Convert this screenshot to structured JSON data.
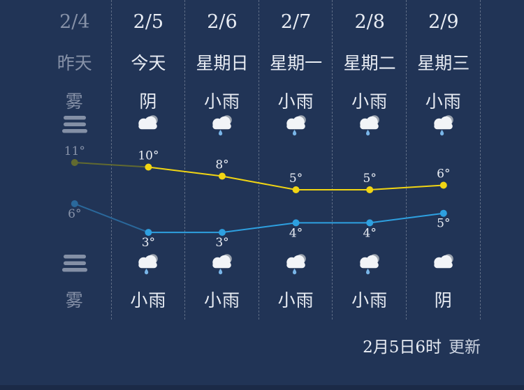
{
  "panel": {
    "columns": [
      {
        "date": "2/4",
        "day": "昨天",
        "day_condition": "雾",
        "day_icon": "fog-icon",
        "night_condition": "雾",
        "night_icon": "fog-icon",
        "is_past": true
      },
      {
        "date": "2/5",
        "day": "今天",
        "day_condition": "阴",
        "day_icon": "cloudy-icon",
        "night_condition": "小雨",
        "night_icon": "light-rain-icon",
        "is_past": false
      },
      {
        "date": "2/6",
        "day": "星期日",
        "day_condition": "小雨",
        "day_icon": "light-rain-icon",
        "night_condition": "小雨",
        "night_icon": "light-rain-icon",
        "is_past": false
      },
      {
        "date": "2/7",
        "day": "星期一",
        "day_condition": "小雨",
        "day_icon": "light-rain-icon",
        "night_condition": "小雨",
        "night_icon": "light-rain-icon",
        "is_past": false
      },
      {
        "date": "2/8",
        "day": "星期二",
        "day_condition": "小雨",
        "day_icon": "light-rain-icon",
        "night_condition": "小雨",
        "night_icon": "light-rain-icon",
        "is_past": false
      },
      {
        "date": "2/9",
        "day": "星期三",
        "day_condition": "小雨",
        "day_icon": "light-rain-icon",
        "night_condition": "阴",
        "night_icon": "cloudy-icon",
        "is_past": false
      }
    ]
  },
  "chart_data": {
    "type": "line",
    "categories": [
      "2/4",
      "2/5",
      "2/6",
      "2/7",
      "2/8",
      "2/9"
    ],
    "series": [
      {
        "name": "day-high-temp",
        "values": [
          11,
          10,
          8,
          5,
          5,
          6
        ],
        "unit": "°",
        "color": "#f1d513",
        "dimmed_color": "#626a30"
      },
      {
        "name": "night-low-temp",
        "values": [
          6,
          3,
          3,
          4,
          4,
          5
        ],
        "unit": "°",
        "color": "#2ea0e0",
        "dimmed_color": "#2a689b"
      }
    ],
    "past_columns": 1,
    "grid": "dashed-vertical-separators",
    "legend": "none",
    "point_labels": "shown"
  },
  "footer": {
    "update_time": "2月5日6时",
    "update_label": "更新"
  },
  "colors": {
    "background": "#213456",
    "bottom_strip": "#1b2a47",
    "text": "#e9edf4",
    "text_past": "#8792a8",
    "separator": "rgba(255,255,255,0.28)",
    "fog": "#8490a6",
    "raindrop": "#79b5e8",
    "cloud_front": "#f2f4f7",
    "cloud_back": "#9aa2ad"
  }
}
